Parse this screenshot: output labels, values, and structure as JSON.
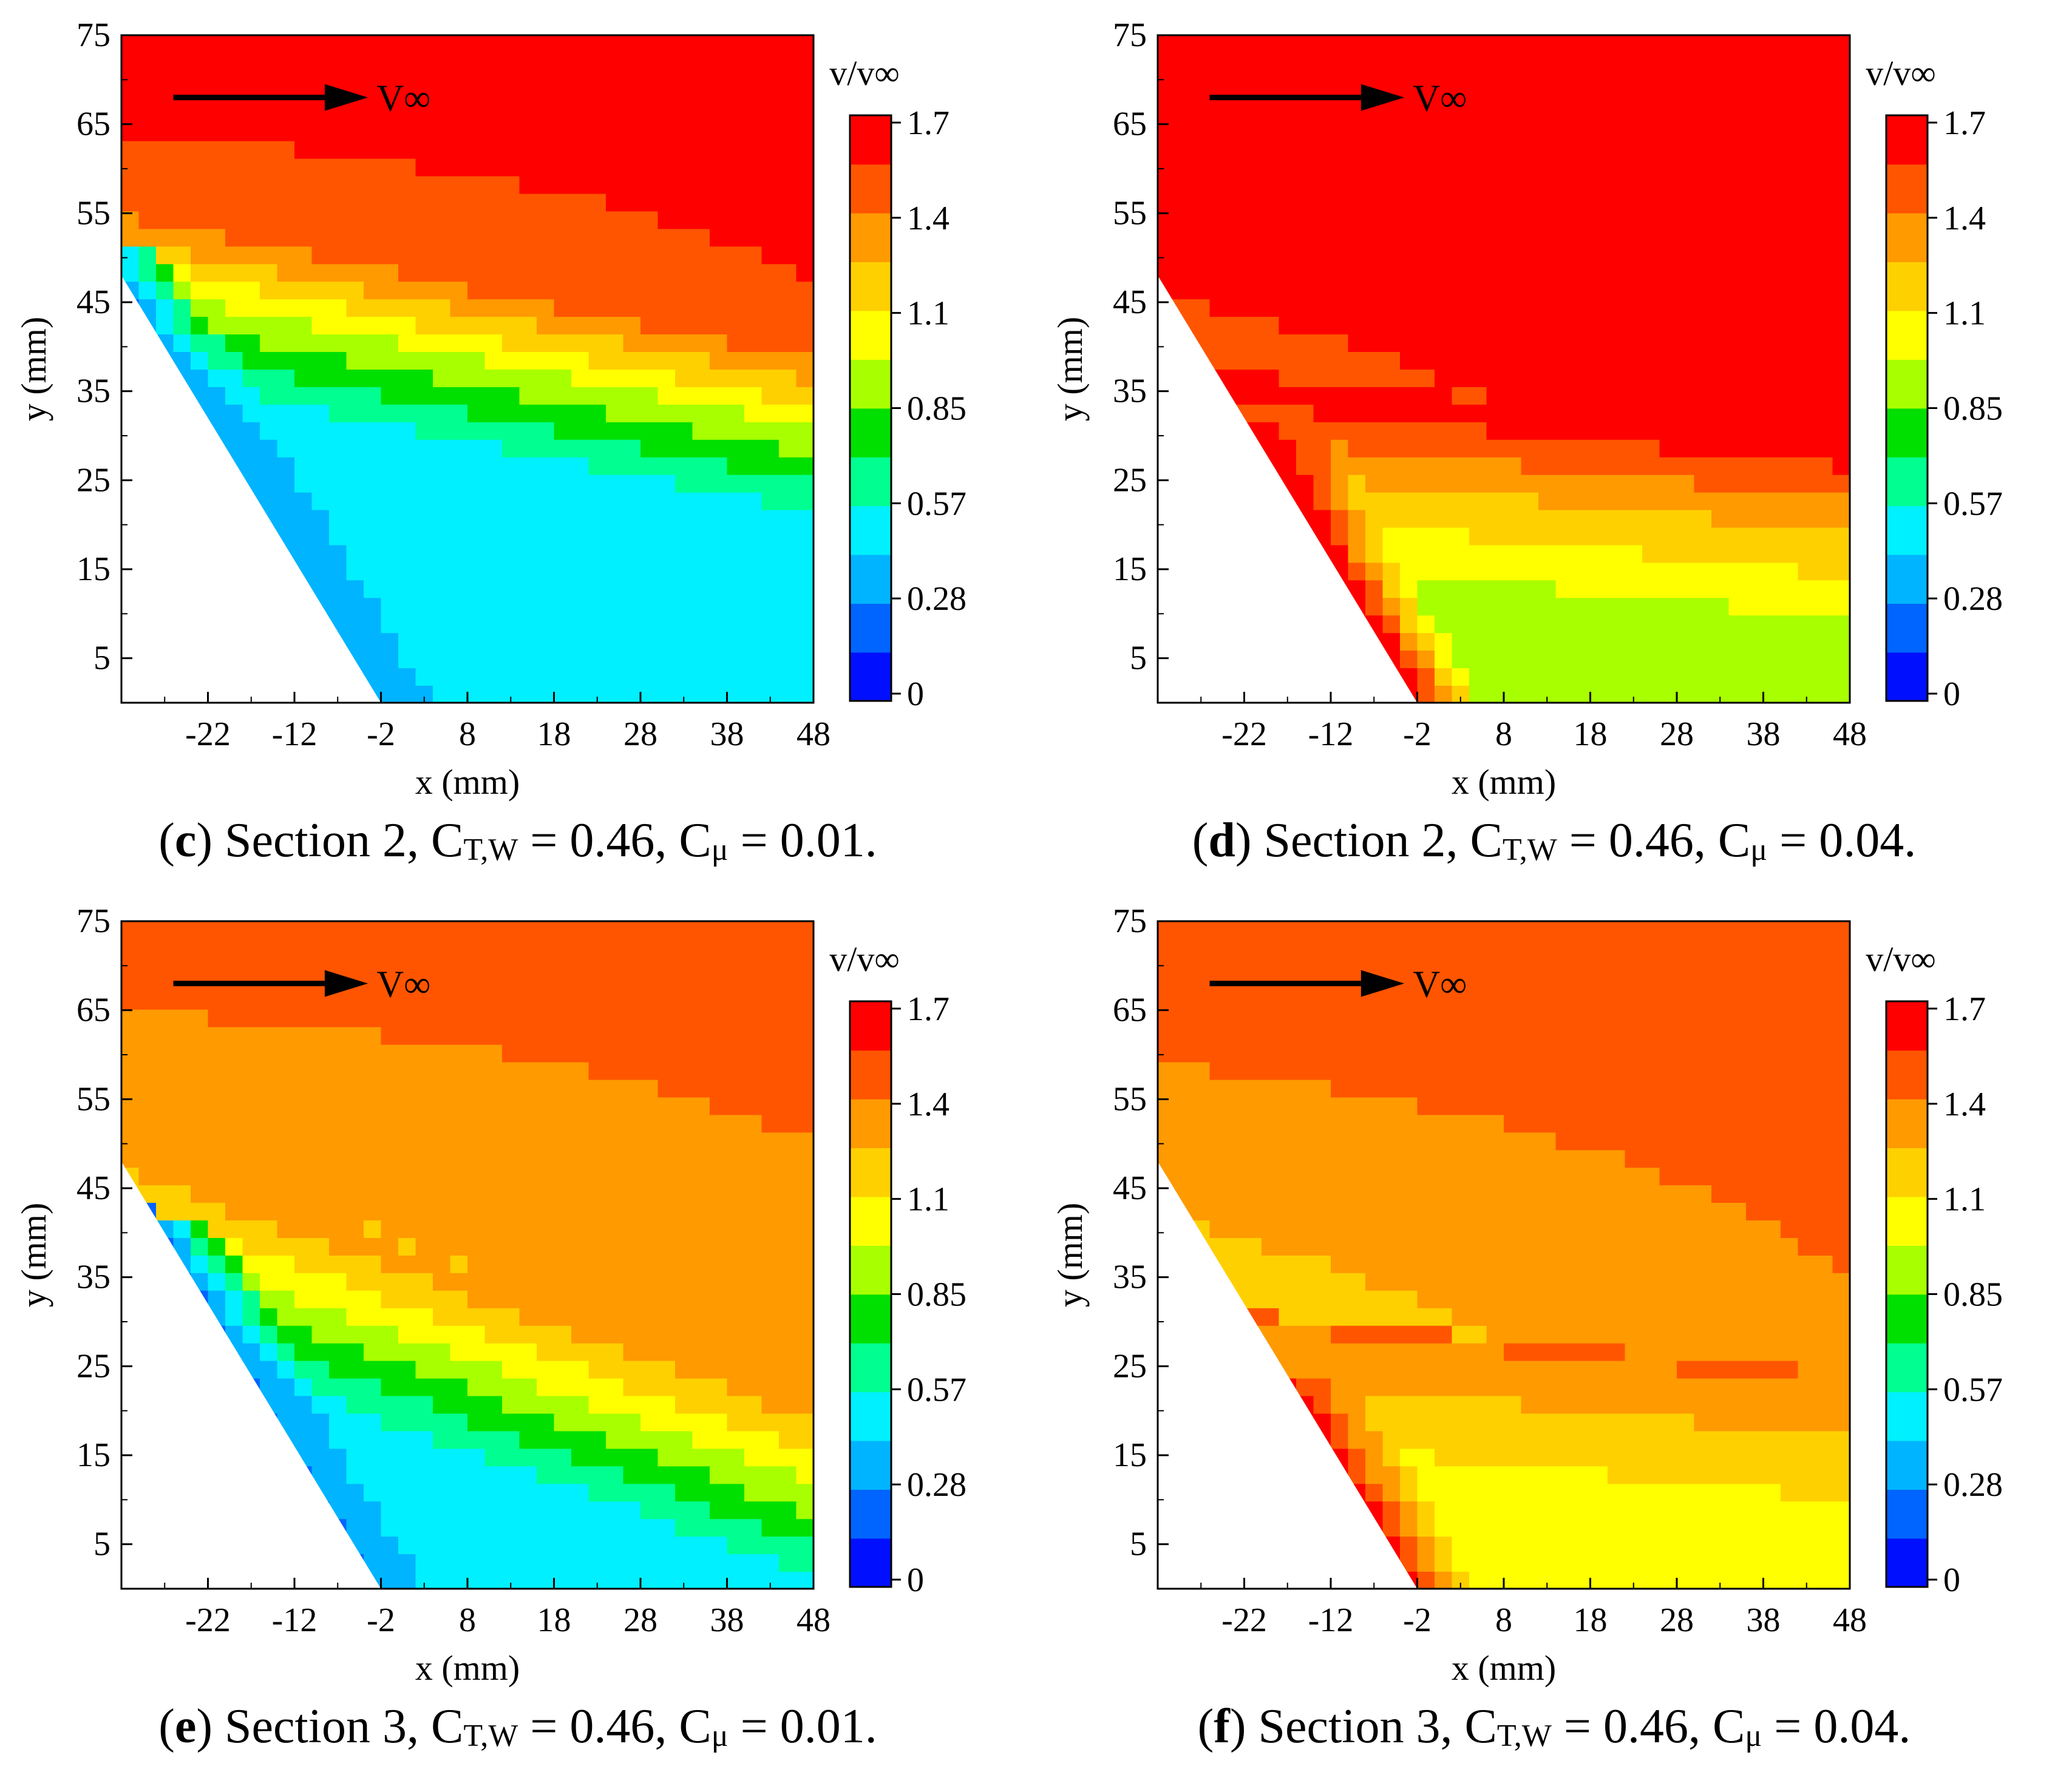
{
  "colors": {
    "scale": [
      "#0010ff",
      "#0064ff",
      "#00b4ff",
      "#00f0ff",
      "#00ff90",
      "#00e000",
      "#a8ff00",
      "#ffff00",
      "#ffd000",
      "#ff9a00",
      "#ff5500",
      "#ff0000"
    ],
    "axis": "#000000"
  },
  "chart_data": [
    {
      "id": "c",
      "type": "heatmap",
      "caption": {
        "letter": "c",
        "section": "Section 2",
        "ct_symbol": "C",
        "ct_sub": "T,W",
        "ct_value": "= 0.46,",
        "cmu_symbol": "C",
        "cmu_sub": "μ",
        "cmu_value": "= 0.01."
      },
      "xlabel": "x (mm)",
      "ylabel": "y (mm)",
      "xlim": [
        -32,
        48
      ],
      "ylim": [
        0,
        75
      ],
      "xticks": [
        "-22",
        "-12",
        "-2",
        "8",
        "18",
        "28",
        "38",
        "48"
      ],
      "yticks": [
        "5",
        "15",
        "25",
        "35",
        "45",
        "55",
        "65",
        "75"
      ],
      "flow_label": "V∞",
      "colorbar": {
        "title": "v/v∞",
        "ticks": [
          "1.7",
          "1.4",
          "1.1",
          "0.85",
          "0.57",
          "0.28",
          "0"
        ],
        "range": [
          0,
          1.7
        ]
      },
      "field": {
        "freestream": 1.55,
        "shear": 1.0,
        "core": 0.45,
        "wall": 0.35,
        "layer_y": 47,
        "slope": 0.2
      }
    },
    {
      "id": "d",
      "type": "heatmap",
      "caption": {
        "letter": "d",
        "section": "Section 2",
        "ct_symbol": "C",
        "ct_sub": "T,W",
        "ct_value": "= 0.46,",
        "cmu_symbol": "C",
        "cmu_sub": "μ",
        "cmu_value": "= 0.04."
      },
      "xlabel": "x (mm)",
      "ylabel": "y (mm)",
      "xlim": [
        -32,
        48
      ],
      "ylim": [
        0,
        75
      ],
      "xticks": [
        "-22",
        "-12",
        "-2",
        "8",
        "18",
        "28",
        "38",
        "48"
      ],
      "yticks": [
        "5",
        "15",
        "25",
        "35",
        "45",
        "55",
        "65",
        "75"
      ],
      "flow_label": "V∞",
      "colorbar": {
        "title": "v/v∞",
        "ticks": [
          "1.7",
          "1.4",
          "1.1",
          "0.85",
          "0.57",
          "0.28",
          "0"
        ],
        "range": [
          0,
          1.7
        ]
      },
      "field": {
        "freestream": 1.7,
        "shear": 1.3,
        "core": 0.95,
        "wall": 1.7,
        "layer_y": 28,
        "slope": 0.1
      }
    },
    {
      "id": "e",
      "type": "heatmap",
      "caption": {
        "letter": "e",
        "section": "Section 3",
        "ct_symbol": "C",
        "ct_sub": "T,W",
        "ct_value": "= 0.46,",
        "cmu_symbol": "C",
        "cmu_sub": "μ",
        "cmu_value": "= 0.01."
      },
      "xlabel": "x (mm)",
      "ylabel": "y (mm)",
      "xlim": [
        -32,
        48
      ],
      "ylim": [
        0,
        75
      ],
      "xticks": [
        "-22",
        "-12",
        "-2",
        "8",
        "18",
        "28",
        "38",
        "48"
      ],
      "yticks": [
        "5",
        "15",
        "25",
        "35",
        "45",
        "55",
        "65",
        "75"
      ],
      "flow_label": "V∞",
      "colorbar": {
        "title": "v/v∞",
        "ticks": [
          "1.7",
          "1.4",
          "1.1",
          "0.85",
          "0.57",
          "0.28",
          "0"
        ],
        "range": [
          0,
          1.7
        ]
      },
      "field": {
        "freestream": 1.4,
        "shear": 1.0,
        "core": 0.5,
        "wall": 0.3,
        "layer_y": 40,
        "slope": 0.35
      }
    },
    {
      "id": "f",
      "type": "heatmap",
      "caption": {
        "letter": "f",
        "section": "Section 3",
        "ct_symbol": "C",
        "ct_sub": "T,W",
        "ct_value": "= 0.46,",
        "cmu_symbol": "C",
        "cmu_sub": "μ",
        "cmu_value": "= 0.04."
      },
      "xlabel": "x (mm)",
      "ylabel": "y (mm)",
      "xlim": [
        -32,
        48
      ],
      "ylim": [
        0,
        75
      ],
      "xticks": [
        "-22",
        "-12",
        "-2",
        "8",
        "18",
        "28",
        "38",
        "48"
      ],
      "yticks": [
        "5",
        "15",
        "25",
        "35",
        "45",
        "55",
        "65",
        "75"
      ],
      "flow_label": "V∞",
      "colorbar": {
        "title": "v/v∞",
        "ticks": [
          "1.7",
          "1.4",
          "1.1",
          "0.85",
          "0.57",
          "0.28",
          "0"
        ],
        "range": [
          0,
          1.7
        ]
      },
      "field": {
        "freestream": 1.45,
        "shear": 1.2,
        "core": 1.0,
        "wall": 1.6,
        "layer_y": 22,
        "slope": 0.1
      }
    }
  ]
}
